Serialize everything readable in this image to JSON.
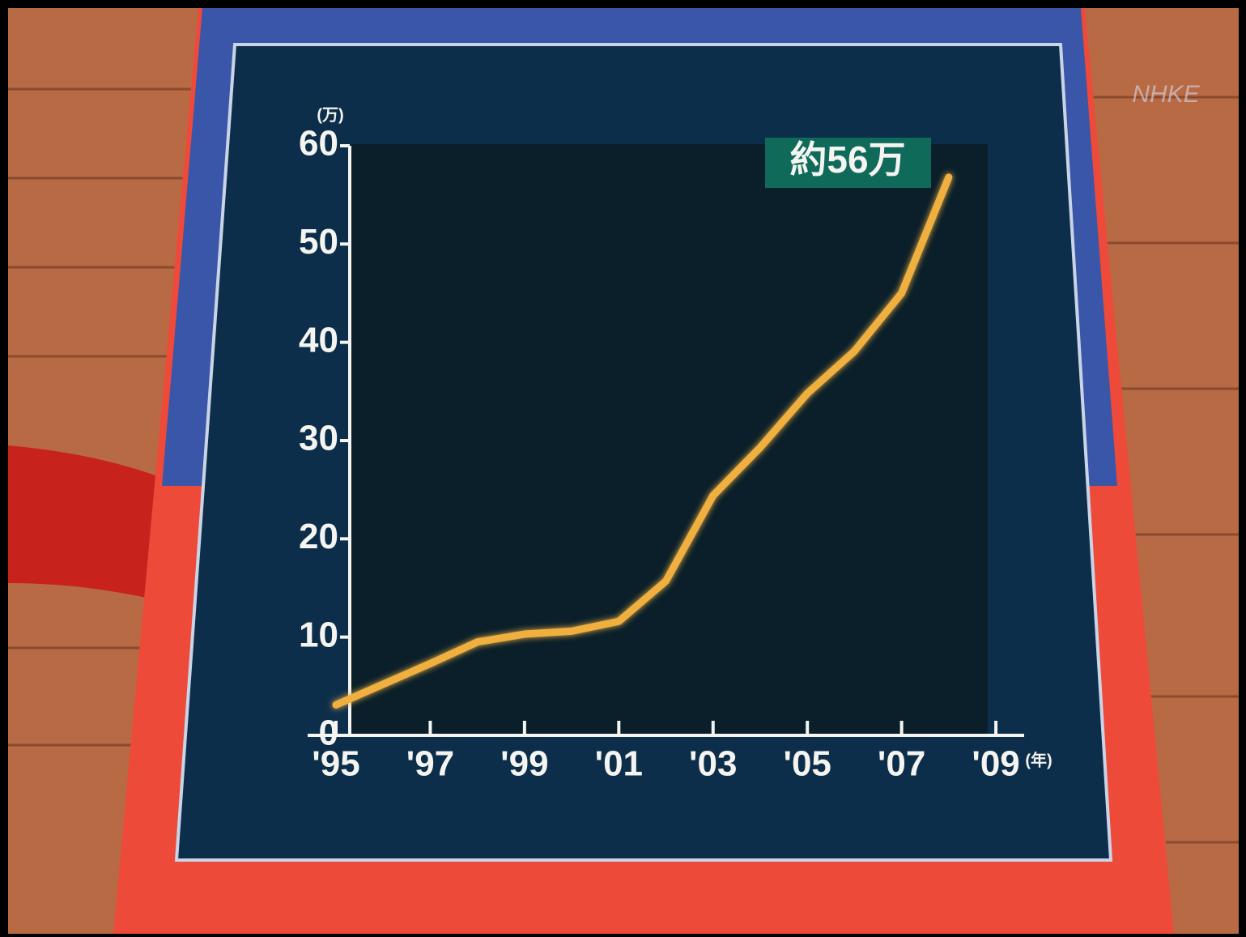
{
  "chart_data": {
    "type": "line",
    "y_unit": "(万)",
    "x_unit": "(年)",
    "annotation": "約56万",
    "logo": "NHKE",
    "x": [
      1995,
      1996,
      1997,
      1998,
      1999,
      2000,
      2001,
      2002,
      2003,
      2004,
      2005,
      2006,
      2007,
      2008
    ],
    "series": [
      {
        "color": "#f0b040",
        "values": [
          3.1,
          5.2,
          7.3,
          9.5,
          10.3,
          10.6,
          11.6,
          15.7,
          24.4,
          29.3,
          34.8,
          39.1,
          45.0,
          56.8
        ]
      }
    ],
    "xlim": [
      1995,
      2009.6
    ],
    "xticks": [
      {
        "value": 1995,
        "label": "'95"
      },
      {
        "value": 1997,
        "label": "'97"
      },
      {
        "value": 1999,
        "label": "'99"
      },
      {
        "value": 2001,
        "label": "'01"
      },
      {
        "value": 2003,
        "label": "'03"
      },
      {
        "value": 2005,
        "label": "'05"
      },
      {
        "value": 2007,
        "label": "'07"
      },
      {
        "value": 2009,
        "label": "'09"
      }
    ],
    "ylim": [
      0,
      60
    ],
    "yticks": [
      0,
      10,
      20,
      30,
      40,
      50,
      60
    ]
  }
}
